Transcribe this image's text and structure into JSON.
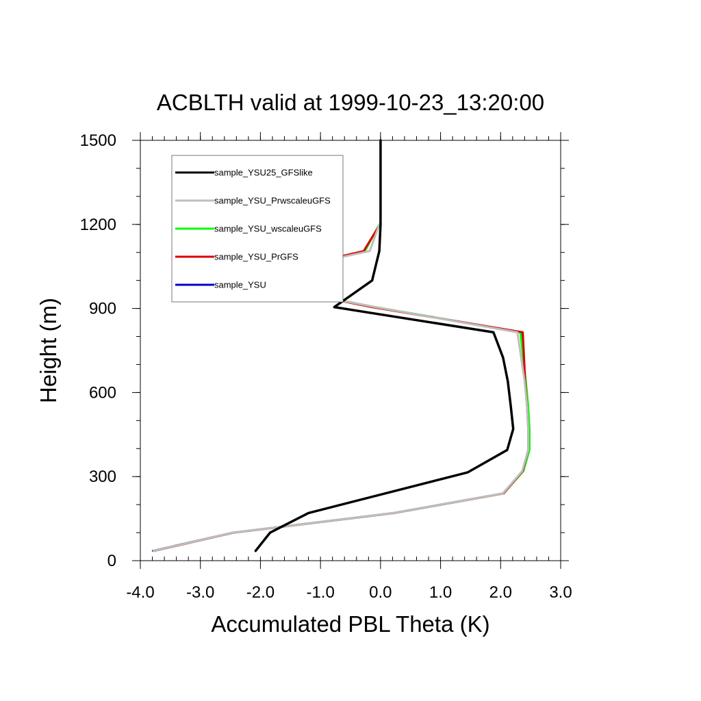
{
  "chart_data": {
    "type": "line",
    "title": "ACBLTH valid at 1999-10-23_13:20:00",
    "xlabel": "Accumulated PBL Theta (K)",
    "ylabel": "Height (m)",
    "xlim": [
      -4.0,
      3.0
    ],
    "ylim": [
      0,
      1500
    ],
    "xticks": [
      -4.0,
      -3.0,
      -2.0,
      -1.0,
      0.0,
      1.0,
      2.0,
      3.0
    ],
    "xtick_labels": [
      "-4.0",
      "-3.0",
      "-2.0",
      "-1.0",
      "0.0",
      "1.0",
      "2.0",
      "3.0"
    ],
    "yticks": [
      0,
      300,
      600,
      900,
      1200,
      1500
    ],
    "ytick_labels": [
      "0",
      "300",
      "600",
      "900",
      "1200",
      "1500"
    ],
    "grid": false,
    "legend_position": "top-left",
    "series": [
      {
        "name": "sample_YSU25_GFSlike",
        "color": "#000000",
        "x": [
          -2.08,
          -1.84,
          -1.2,
          1.45,
          2.11,
          2.21,
          2.17,
          2.12,
          2.04,
          1.88,
          -0.77,
          -0.14,
          -0.02,
          0.0,
          0.0,
          0.0
        ],
        "y": [
          35,
          100,
          170,
          315,
          395,
          470,
          550,
          640,
          725,
          815,
          905,
          1000,
          1105,
          1200,
          1300,
          1500
        ]
      },
      {
        "name": "sample_YSU_PrwscaleuGFS",
        "color": "#bebebe",
        "x": [
          -3.78,
          -2.46,
          0.22,
          2.04,
          2.36,
          2.46,
          2.46,
          2.44,
          2.4,
          2.28,
          -0.08,
          -2.46,
          -0.18,
          -0.02
        ],
        "y": [
          35,
          100,
          170,
          240,
          320,
          395,
          470,
          550,
          640,
          815,
          905,
          1000,
          1105,
          1200
        ]
      },
      {
        "name": "sample_YSU_wscaleuGFS",
        "color": "#00ff00",
        "x": [
          -3.77,
          -2.45,
          0.23,
          2.05,
          2.38,
          2.48,
          2.48,
          2.46,
          2.42,
          2.33,
          -0.08,
          -2.43,
          -0.26,
          -0.02
        ],
        "y": [
          35,
          100,
          170,
          240,
          320,
          395,
          470,
          550,
          640,
          815,
          905,
          1000,
          1105,
          1200
        ]
      },
      {
        "name": "sample_YSU_PrGFS",
        "color": "#dd0000",
        "x": [
          -3.77,
          -2.45,
          0.23,
          2.05,
          2.37,
          2.46,
          2.46,
          2.44,
          2.41,
          2.37,
          -0.14,
          -2.38,
          -0.28,
          -0.01
        ],
        "y": [
          35,
          100,
          170,
          240,
          320,
          395,
          470,
          550,
          640,
          815,
          905,
          1000,
          1105,
          1200
        ]
      },
      {
        "name": "sample_YSU",
        "color": "#0000cc",
        "x": [
          -3.79,
          -2.46,
          0.22,
          2.04,
          2.37,
          2.47,
          2.47,
          2.45,
          2.41,
          2.34,
          -0.1,
          -2.36
        ],
        "y": [
          35,
          100,
          170,
          240,
          320,
          395,
          470,
          550,
          640,
          815,
          905,
          1000
        ]
      }
    ]
  }
}
